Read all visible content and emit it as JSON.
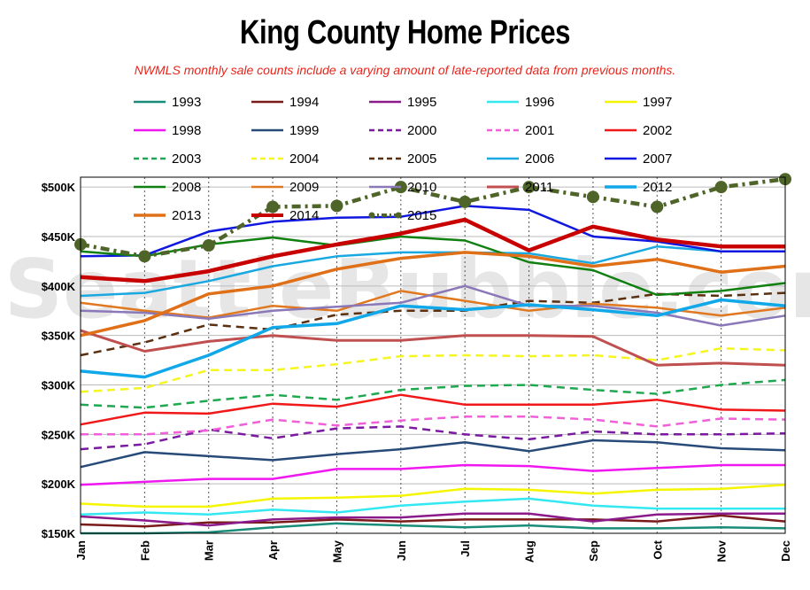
{
  "title": "King County Home Prices",
  "subtitle": "NWMLS monthly sale counts include a varying amount of late-reported  data from previous months.",
  "watermark": "SeattleBubble.com",
  "chart_data": {
    "type": "line",
    "categories": [
      "Jan",
      "Feb",
      "Mar",
      "Apr",
      "May",
      "Jun",
      "Jul",
      "Aug",
      "Sep",
      "Oct",
      "Nov",
      "Dec"
    ],
    "ylim": [
      150000,
      510000
    ],
    "yticks": [
      150000,
      200000,
      250000,
      300000,
      350000,
      400000,
      450000,
      500000
    ],
    "ytick_labels": [
      "$150K",
      "$200K",
      "$250K",
      "$300K",
      "$350K",
      "$400K",
      "$450K",
      "$500K"
    ],
    "grid": true,
    "legend_position": "top",
    "series": [
      {
        "name": "1993",
        "color": "#1a8c7a",
        "dash": "solid",
        "width": 2.5,
        "values": [
          150000,
          150000,
          151000,
          156000,
          160000,
          158000,
          156000,
          158000,
          155000,
          155000,
          156000,
          155000
        ]
      },
      {
        "name": "1994",
        "color": "#7a1a1a",
        "dash": "solid",
        "width": 2.5,
        "values": [
          159000,
          157000,
          161000,
          161000,
          164000,
          162000,
          164000,
          164000,
          164000,
          162000,
          168000,
          162000
        ]
      },
      {
        "name": "1995",
        "color": "#8b1a8b",
        "dash": "solid",
        "width": 2.5,
        "values": [
          167000,
          163000,
          158000,
          164000,
          166000,
          166000,
          170000,
          170000,
          162000,
          169000,
          170000,
          170000
        ]
      },
      {
        "name": "1996",
        "color": "#33e8f0",
        "dash": "solid",
        "width": 2.5,
        "values": [
          169000,
          171000,
          169000,
          174000,
          171000,
          178000,
          182000,
          185000,
          178000,
          175000,
          175000,
          175000
        ]
      },
      {
        "name": "1997",
        "color": "#f5f500",
        "dash": "solid",
        "width": 2.5,
        "values": [
          180000,
          177000,
          177000,
          185000,
          186000,
          188000,
          195000,
          194000,
          190000,
          194000,
          195000,
          199000
        ]
      },
      {
        "name": "1998",
        "color": "#f018f0",
        "dash": "solid",
        "width": 2.5,
        "values": [
          199000,
          202000,
          205000,
          205000,
          215000,
          215000,
          219000,
          218000,
          213000,
          216000,
          219000,
          219000
        ]
      },
      {
        "name": "1999",
        "color": "#274a78",
        "dash": "solid",
        "width": 2.5,
        "values": [
          217000,
          232000,
          228000,
          224000,
          230000,
          235000,
          242000,
          233000,
          244000,
          242000,
          236000,
          234000
        ]
      },
      {
        "name": "2000",
        "color": "#7a1aa0",
        "dash": "dash",
        "width": 2.5,
        "values": [
          235000,
          240000,
          255000,
          246000,
          256000,
          258000,
          250000,
          245000,
          253000,
          250000,
          250000,
          251000
        ]
      },
      {
        "name": "2001",
        "color": "#f060d8",
        "dash": "dash",
        "width": 2.5,
        "values": [
          250000,
          250000,
          254000,
          265000,
          259000,
          264000,
          268000,
          268000,
          265000,
          258000,
          266000,
          265000
        ]
      },
      {
        "name": "2002",
        "color": "#f01818",
        "dash": "solid",
        "width": 2.5,
        "values": [
          260000,
          272000,
          271000,
          281000,
          278000,
          290000,
          280000,
          280000,
          280000,
          285000,
          275000,
          274000
        ]
      },
      {
        "name": "2003",
        "color": "#20a850",
        "dash": "dash",
        "width": 2.5,
        "values": [
          280000,
          277000,
          284000,
          290000,
          285000,
          295000,
          299000,
          300000,
          295000,
          291000,
          300000,
          305000
        ]
      },
      {
        "name": "2004",
        "color": "#f5f520",
        "dash": "dash",
        "width": 2.5,
        "values": [
          293000,
          297000,
          315000,
          315000,
          321000,
          329000,
          330000,
          329000,
          330000,
          325000,
          337000,
          335000
        ]
      },
      {
        "name": "2005",
        "color": "#5a3010",
        "dash": "dash",
        "width": 2.5,
        "values": [
          330000,
          343000,
          361000,
          356000,
          371000,
          375000,
          375000,
          385000,
          383000,
          392000,
          390000,
          393000
        ]
      },
      {
        "name": "2006",
        "color": "#1aa8e0",
        "dash": "solid",
        "width": 2.5,
        "values": [
          390000,
          393000,
          405000,
          420000,
          430000,
          434000,
          434000,
          433000,
          423000,
          440000,
          435000,
          435000
        ]
      },
      {
        "name": "2007",
        "color": "#1018e0",
        "dash": "solid",
        "width": 2.5,
        "values": [
          430000,
          431000,
          455000,
          465000,
          469000,
          470000,
          481000,
          477000,
          450000,
          445000,
          435000,
          435000
        ]
      },
      {
        "name": "2008",
        "color": "#108010",
        "dash": "solid",
        "width": 2.5,
        "values": [
          435000,
          430000,
          442000,
          449000,
          441000,
          450000,
          446000,
          424000,
          416000,
          391000,
          395000,
          403000
        ]
      },
      {
        "name": "2009",
        "color": "#e07820",
        "dash": "solid",
        "width": 2.5,
        "values": [
          383000,
          375000,
          368000,
          380000,
          375000,
          395000,
          385000,
          375000,
          382000,
          378000,
          370000,
          378000
        ]
      },
      {
        "name": "2010",
        "color": "#8a78b8",
        "dash": "solid",
        "width": 2.5,
        "values": [
          375000,
          373000,
          367000,
          375000,
          379000,
          383000,
          400000,
          380000,
          380000,
          373000,
          360000,
          370000
        ]
      },
      {
        "name": "2011",
        "color": "#c05050",
        "dash": "solid",
        "width": 3,
        "values": [
          355000,
          334000,
          344000,
          350000,
          345000,
          345000,
          350000,
          350000,
          349000,
          320000,
          322000,
          320000
        ]
      },
      {
        "name": "2012",
        "color": "#10a8e8",
        "dash": "solid",
        "width": 3.5,
        "values": [
          314000,
          308000,
          330000,
          358000,
          362000,
          380000,
          376000,
          381000,
          376000,
          370000,
          386000,
          380000
        ]
      },
      {
        "name": "2013",
        "color": "#e07018",
        "dash": "solid",
        "width": 3.5,
        "values": [
          350000,
          365000,
          392000,
          400000,
          417000,
          428000,
          434000,
          430000,
          420000,
          427000,
          414000,
          420000
        ]
      },
      {
        "name": "2014",
        "color": "#c80000",
        "dash": "solid",
        "width": 4.5,
        "values": [
          409000,
          405000,
          415000,
          430000,
          442000,
          453000,
          467000,
          436000,
          460000,
          447000,
          440000,
          440000
        ]
      },
      {
        "name": "2015",
        "color": "#4e6428",
        "dash": "dashdot",
        "width": 4.5,
        "markers": true,
        "values": [
          442000,
          430000,
          441000,
          480000,
          481000,
          500000,
          485000,
          500000,
          490000,
          480000,
          500000,
          508000
        ]
      }
    ]
  }
}
